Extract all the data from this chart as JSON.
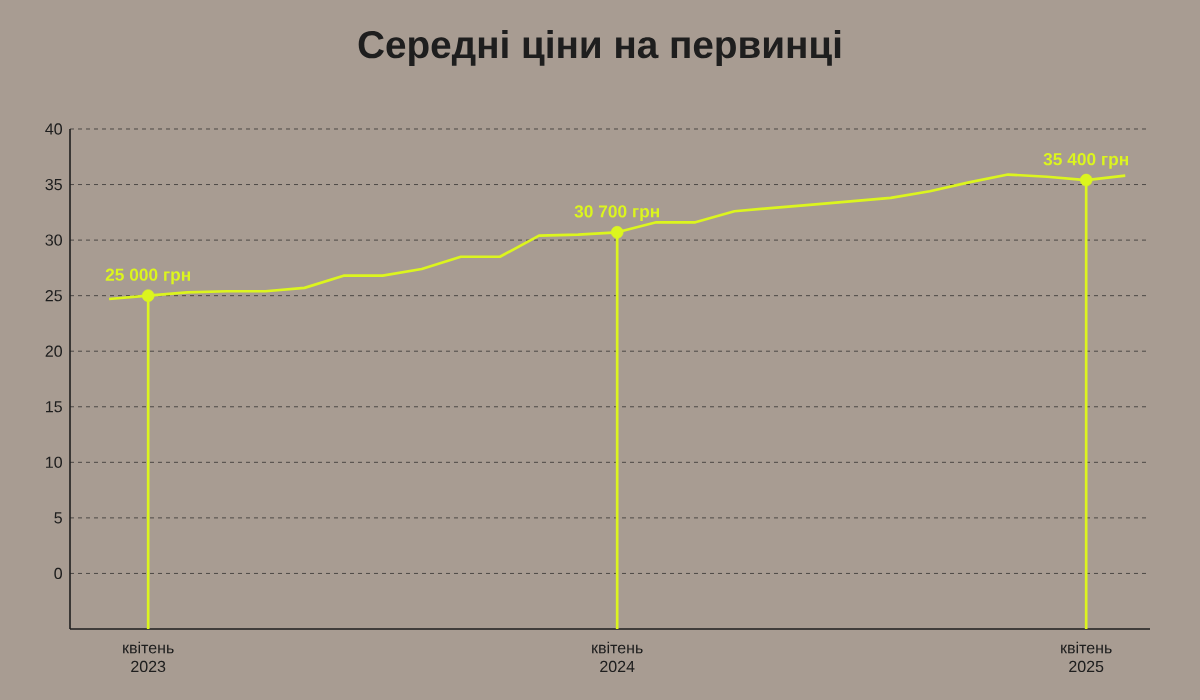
{
  "chart_data": {
    "type": "line",
    "title": "Середні ціни на первинці",
    "xlim": [
      "2023-02-01",
      "2025-05-20"
    ],
    "ylim": [
      -5,
      40
    ],
    "yticks": [
      0,
      5,
      10,
      15,
      20,
      25,
      30,
      35,
      40
    ],
    "xticks": [
      {
        "value": "2023-04",
        "label": "квітень 2023"
      },
      {
        "value": "2024-04",
        "label": "квітень 2024"
      },
      {
        "value": "2025-04",
        "label": "квітень 2025"
      }
    ],
    "grid": "y",
    "series": [
      {
        "color": "#dcf51e",
        "marker": "none",
        "line_style": "solid",
        "x": [
          "2023-03",
          "2023-04",
          "2023-05",
          "2023-06",
          "2023-07",
          "2023-08",
          "2023-09",
          "2023-10",
          "2023-11",
          "2023-12",
          "2024-01",
          "2024-02",
          "2024-03",
          "2024-04",
          "2024-05",
          "2024-06",
          "2024-07",
          "2024-08",
          "2024-09",
          "2024-10",
          "2024-11",
          "2024-12",
          "2025-01",
          "2025-02",
          "2025-03",
          "2025-04",
          "2025-05"
        ],
        "values": [
          24.7,
          25.0,
          25.3,
          25.4,
          25.4,
          25.7,
          26.8,
          26.8,
          27.4,
          28.5,
          28.5,
          30.4,
          30.5,
          30.7,
          31.6,
          31.6,
          32.6,
          32.9,
          33.2,
          33.5,
          33.8,
          34.4,
          35.2,
          35.9,
          35.7,
          35.4,
          35.8
        ]
      },
      {
        "type": "scatter",
        "color": "#dcf51e",
        "marker": "circle",
        "x": [
          "2023-04",
          "2024-04",
          "2025-04"
        ],
        "values": [
          25.0,
          30.7,
          35.4
        ]
      }
    ],
    "annotations": [
      {
        "text": "25 000 грн",
        "x": "2023-04",
        "y": 25.0
      },
      {
        "text": "30 700 грн",
        "x": "2024-04",
        "y": 30.7
      },
      {
        "text": "35 400 грн",
        "x": "2025-04",
        "y": 35.4
      }
    ],
    "ref_lines": [
      {
        "axis": "x",
        "value": "2023-04",
        "color": "#dcf51e"
      },
      {
        "axis": "x",
        "value": "2024-04",
        "color": "#dcf51e"
      },
      {
        "axis": "x",
        "value": "2025-04",
        "color": "#dcf51e"
      }
    ]
  }
}
